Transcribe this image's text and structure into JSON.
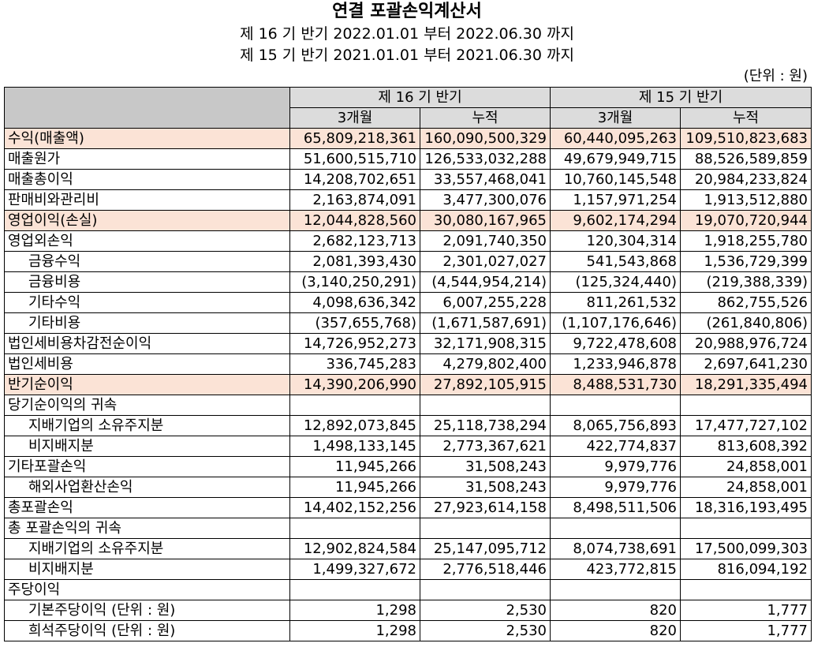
{
  "title": "연결 포괄손익계산서",
  "period_current": "제 16 기 반기 2022.01.01 부터 2022.06.30 까지",
  "period_prior": "제 15 기 반기 2021.01.01 부터 2021.06.30 까지",
  "unit": "(단위 : 원)",
  "header": {
    "group_current": "제 16 기 반기",
    "group_prior": "제 15 기 반기",
    "sub": [
      "3개월",
      "누적",
      "3개월",
      "누적"
    ]
  },
  "rows": [
    {
      "label": "수익(매출액)",
      "indent": false,
      "highlight": true,
      "values": [
        "65,809,218,361",
        "160,090,500,329",
        "60,440,095,263",
        "109,510,823,683"
      ]
    },
    {
      "label": "매출원가",
      "indent": false,
      "highlight": false,
      "values": [
        "51,600,515,710",
        "126,533,032,288",
        "49,679,949,715",
        "88,526,589,859"
      ]
    },
    {
      "label": "매출총이익",
      "indent": false,
      "highlight": false,
      "values": [
        "14,208,702,651",
        "33,557,468,041",
        "10,760,145,548",
        "20,984,233,824"
      ]
    },
    {
      "label": "판매비와관리비",
      "indent": false,
      "highlight": false,
      "values": [
        "2,163,874,091",
        "3,477,300,076",
        "1,157,971,254",
        "1,913,512,880"
      ]
    },
    {
      "label": "영업이익(손실)",
      "indent": false,
      "highlight": true,
      "values": [
        "12,044,828,560",
        "30,080,167,965",
        "9,602,174,294",
        "19,070,720,944"
      ]
    },
    {
      "label": "영업외손익",
      "indent": false,
      "highlight": false,
      "values": [
        "2,682,123,713",
        "2,091,740,350",
        "120,304,314",
        "1,918,255,780"
      ]
    },
    {
      "label": "금융수익",
      "indent": true,
      "highlight": false,
      "values": [
        "2,081,393,430",
        "2,301,027,027",
        "541,543,868",
        "1,536,729,399"
      ]
    },
    {
      "label": "금융비용",
      "indent": true,
      "highlight": false,
      "values": [
        "(3,140,250,291)",
        "(4,544,954,214)",
        "(125,324,440)",
        "(219,388,339)"
      ]
    },
    {
      "label": "기타수익",
      "indent": true,
      "highlight": false,
      "values": [
        "4,098,636,342",
        "6,007,255,228",
        "811,261,532",
        "862,755,526"
      ]
    },
    {
      "label": "기타비용",
      "indent": true,
      "highlight": false,
      "values": [
        "(357,655,768)",
        "(1,671,587,691)",
        "(1,107,176,646)",
        "(261,840,806)"
      ]
    },
    {
      "label": "법인세비용차감전순이익",
      "indent": false,
      "highlight": false,
      "values": [
        "14,726,952,273",
        "32,171,908,315",
        "9,722,478,608",
        "20,988,976,724"
      ]
    },
    {
      "label": "법인세비용",
      "indent": false,
      "highlight": false,
      "values": [
        "336,745,283",
        "4,279,802,400",
        "1,233,946,878",
        "2,697,641,230"
      ]
    },
    {
      "label": "반기순이익",
      "indent": false,
      "highlight": true,
      "values": [
        "14,390,206,990",
        "27,892,105,915",
        "8,488,531,730",
        "18,291,335,494"
      ]
    },
    {
      "label": "당기순이익의 귀속",
      "indent": false,
      "highlight": false,
      "values": [
        "",
        "",
        "",
        ""
      ]
    },
    {
      "label": "지배기업의 소유주지분",
      "indent": true,
      "highlight": false,
      "values": [
        "12,892,073,845",
        "25,118,738,294",
        "8,065,756,893",
        "17,477,727,102"
      ]
    },
    {
      "label": "비지배지분",
      "indent": true,
      "highlight": false,
      "values": [
        "1,498,133,145",
        "2,773,367,621",
        "422,774,837",
        "813,608,392"
      ]
    },
    {
      "label": "기타포괄손익",
      "indent": false,
      "highlight": false,
      "values": [
        "11,945,266",
        "31,508,243",
        "9,979,776",
        "24,858,001"
      ]
    },
    {
      "label": "해외사업환산손익",
      "indent": true,
      "highlight": false,
      "values": [
        "11,945,266",
        "31,508,243",
        "9,979,776",
        "24,858,001"
      ]
    },
    {
      "label": "총포괄손익",
      "indent": false,
      "highlight": false,
      "values": [
        "14,402,152,256",
        "27,923,614,158",
        "8,498,511,506",
        "18,316,193,495"
      ]
    },
    {
      "label": "총 포괄손익의 귀속",
      "indent": false,
      "highlight": false,
      "values": [
        "",
        "",
        "",
        ""
      ]
    },
    {
      "label": "지배기업의 소유주지분",
      "indent": true,
      "highlight": false,
      "values": [
        "12,902,824,584",
        "25,147,095,712",
        "8,074,738,691",
        "17,500,099,303"
      ]
    },
    {
      "label": "비지배지분",
      "indent": true,
      "highlight": false,
      "values": [
        "1,499,327,672",
        "2,776,518,446",
        "423,772,815",
        "816,094,192"
      ]
    },
    {
      "label": "주당이익",
      "indent": false,
      "highlight": false,
      "values": [
        "",
        "",
        "",
        ""
      ]
    },
    {
      "label": "기본주당이익 (단위 : 원)",
      "indent": true,
      "highlight": false,
      "values": [
        "1,298",
        "2,530",
        "820",
        "1,777"
      ]
    },
    {
      "label": "희석주당이익 (단위 : 원)",
      "indent": true,
      "highlight": false,
      "values": [
        "1,298",
        "2,530",
        "820",
        "1,777"
      ]
    }
  ]
}
